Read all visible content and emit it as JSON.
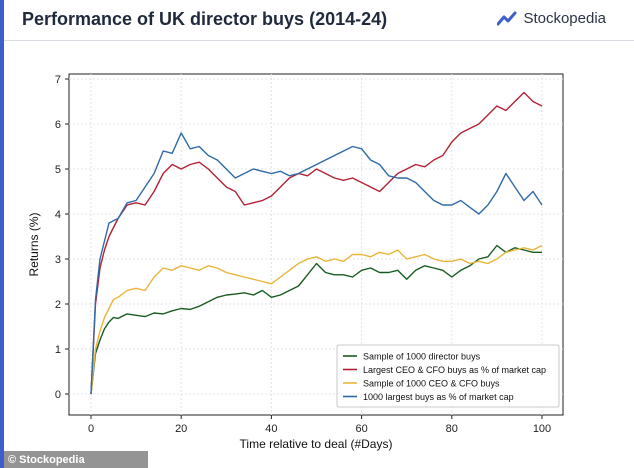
{
  "header": {
    "title": "Performance of UK director buys (2014-24)",
    "brand": "Stockopedia"
  },
  "footer": {
    "watermark": "© Stockopedia"
  },
  "colors": {
    "accent": "#3f5ec9",
    "sample1000": "#1a5c20",
    "ceo_cfo_pct": "#b22234",
    "ceo_cfo_1000": "#e8b53a",
    "largest_pct": "#2f6aa8"
  },
  "chart_data": {
    "type": "line",
    "xlabel": "Time relative to deal (#Days)",
    "ylabel": "Returns (%)",
    "xlim": [
      0,
      100
    ],
    "ylim": [
      0,
      7
    ],
    "xticks": [
      0,
      20,
      40,
      60,
      80,
      100
    ],
    "yticks": [
      0,
      1,
      2,
      3,
      4,
      5,
      6,
      7
    ],
    "grid": true,
    "legend_position": "bottom-right",
    "series": [
      {
        "name": "Sample of 1000 director buys",
        "color": "#1a5c20",
        "x": [
          0,
          1,
          2,
          3,
          4,
          5,
          6,
          8,
          10,
          12,
          14,
          16,
          18,
          20,
          22,
          24,
          26,
          28,
          30,
          32,
          34,
          36,
          38,
          40,
          42,
          44,
          46,
          48,
          50,
          52,
          54,
          56,
          58,
          60,
          62,
          64,
          66,
          68,
          70,
          72,
          74,
          76,
          78,
          80,
          82,
          84,
          86,
          88,
          90,
          92,
          94,
          96,
          98,
          100
        ],
        "y": [
          0,
          0.9,
          1.2,
          1.45,
          1.6,
          1.7,
          1.68,
          1.78,
          1.75,
          1.72,
          1.8,
          1.78,
          1.85,
          1.9,
          1.88,
          1.95,
          2.05,
          2.15,
          2.2,
          2.22,
          2.25,
          2.2,
          2.3,
          2.15,
          2.2,
          2.3,
          2.4,
          2.65,
          2.9,
          2.7,
          2.65,
          2.65,
          2.6,
          2.75,
          2.8,
          2.7,
          2.7,
          2.75,
          2.55,
          2.75,
          2.85,
          2.8,
          2.75,
          2.6,
          2.75,
          2.85,
          3.0,
          3.05,
          3.3,
          3.15,
          3.25,
          3.2,
          3.15,
          3.15
        ]
      },
      {
        "name": "Largest CEO & CFO buys as % of market cap",
        "color": "#b22234",
        "x": [
          0,
          1,
          2,
          3,
          4,
          5,
          6,
          8,
          10,
          12,
          14,
          16,
          18,
          20,
          22,
          24,
          26,
          28,
          30,
          32,
          34,
          36,
          38,
          40,
          42,
          44,
          46,
          48,
          50,
          52,
          54,
          56,
          58,
          60,
          62,
          64,
          66,
          68,
          70,
          72,
          74,
          76,
          78,
          80,
          82,
          84,
          86,
          88,
          90,
          92,
          94,
          96,
          98,
          100
        ],
        "y": [
          0,
          2.0,
          2.8,
          3.2,
          3.5,
          3.7,
          3.9,
          4.2,
          4.25,
          4.2,
          4.5,
          4.9,
          5.1,
          5.0,
          5.1,
          5.15,
          5.0,
          4.8,
          4.6,
          4.5,
          4.2,
          4.25,
          4.3,
          4.4,
          4.6,
          4.8,
          4.9,
          4.85,
          5.0,
          4.9,
          4.8,
          4.75,
          4.8,
          4.7,
          4.6,
          4.5,
          4.7,
          4.9,
          5.0,
          5.1,
          5.05,
          5.2,
          5.3,
          5.6,
          5.8,
          5.9,
          6.0,
          6.2,
          6.4,
          6.3,
          6.5,
          6.7,
          6.5,
          6.4
        ]
      },
      {
        "name": "Sample of 1000 CEO & CFO buys",
        "color": "#e8b53a",
        "x": [
          0,
          1,
          2,
          3,
          4,
          5,
          6,
          8,
          10,
          12,
          14,
          16,
          18,
          20,
          22,
          24,
          26,
          28,
          30,
          32,
          34,
          36,
          38,
          40,
          42,
          44,
          46,
          48,
          50,
          52,
          54,
          56,
          58,
          60,
          62,
          64,
          66,
          68,
          70,
          72,
          74,
          76,
          78,
          80,
          82,
          84,
          86,
          88,
          90,
          92,
          94,
          96,
          98,
          100
        ],
        "y": [
          0,
          1.0,
          1.4,
          1.7,
          1.9,
          2.1,
          2.15,
          2.3,
          2.35,
          2.3,
          2.6,
          2.8,
          2.75,
          2.85,
          2.8,
          2.75,
          2.85,
          2.8,
          2.7,
          2.65,
          2.6,
          2.55,
          2.5,
          2.45,
          2.6,
          2.75,
          2.9,
          3.0,
          3.05,
          2.95,
          3.0,
          2.95,
          3.1,
          3.1,
          3.05,
          3.15,
          3.1,
          3.2,
          3.0,
          3.05,
          3.1,
          3.0,
          2.95,
          2.95,
          3.0,
          2.9,
          2.95,
          2.9,
          3.0,
          3.15,
          3.2,
          3.25,
          3.2,
          3.3
        ]
      },
      {
        "name": "1000 largest buys as % of market cap",
        "color": "#2f6aa8",
        "x": [
          0,
          1,
          2,
          3,
          4,
          5,
          6,
          8,
          10,
          12,
          14,
          16,
          18,
          20,
          22,
          24,
          26,
          28,
          30,
          32,
          34,
          36,
          38,
          40,
          42,
          44,
          46,
          48,
          50,
          52,
          54,
          56,
          58,
          60,
          62,
          64,
          66,
          68,
          70,
          72,
          74,
          76,
          78,
          80,
          82,
          84,
          86,
          88,
          90,
          92,
          94,
          96,
          98,
          100
        ],
        "y": [
          0,
          2.1,
          3.0,
          3.4,
          3.8,
          3.85,
          3.9,
          4.25,
          4.3,
          4.6,
          4.9,
          5.4,
          5.35,
          5.8,
          5.45,
          5.5,
          5.3,
          5.2,
          5.0,
          4.8,
          4.9,
          5.0,
          4.95,
          4.9,
          4.95,
          4.85,
          4.9,
          5.0,
          5.1,
          5.2,
          5.3,
          5.4,
          5.5,
          5.45,
          5.2,
          5.1,
          4.85,
          4.8,
          4.8,
          4.7,
          4.5,
          4.3,
          4.2,
          4.2,
          4.3,
          4.15,
          4.0,
          4.2,
          4.5,
          4.9,
          4.6,
          4.3,
          4.5,
          4.2
        ]
      }
    ]
  }
}
